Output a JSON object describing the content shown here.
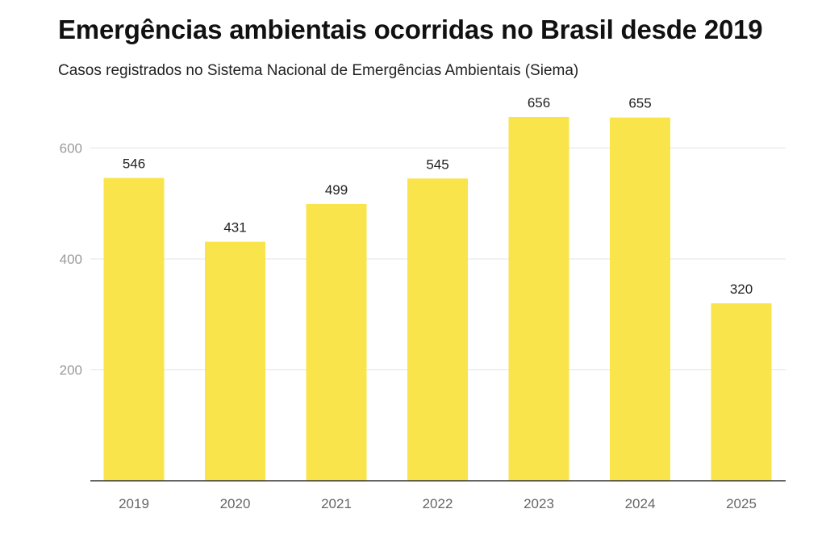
{
  "chart_data": {
    "type": "bar",
    "title": "Emergências ambientais ocorridas no Brasil desde 2019",
    "subtitle": "Casos registrados no Sistema Nacional de Emergências Ambientais (Siema)",
    "categories": [
      "2019",
      "2020",
      "2021",
      "2022",
      "2023",
      "2024",
      "2025"
    ],
    "values": [
      546,
      431,
      499,
      545,
      656,
      655,
      320
    ],
    "ylim": [
      0,
      700
    ],
    "yticks": [
      200,
      400,
      600
    ],
    "grid": true,
    "bar_color": "#f9e44c",
    "show_data_labels": true
  }
}
